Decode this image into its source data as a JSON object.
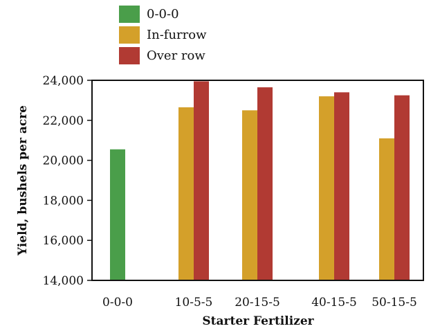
{
  "chart_data": {
    "type": "bar",
    "title": "",
    "xlabel": "Starter Fertilizer",
    "ylabel": "Yield, bushels per acre",
    "ylim": [
      14000,
      24000
    ],
    "yticks": [
      14000,
      16000,
      18000,
      20000,
      22000,
      24000
    ],
    "ytick_labels": [
      "14,000",
      "16,000",
      "18,000",
      "20,000",
      "22,000",
      "24,000"
    ],
    "categories": [
      "0-0-0",
      "10-5-5",
      "20-15-5",
      "40-15-5",
      "50-15-5"
    ],
    "series": [
      {
        "name": "0-0-0",
        "color": "#4a9e4a",
        "values": [
          20550,
          null,
          null,
          null,
          null
        ]
      },
      {
        "name": "In-furrow",
        "color": "#d4a02a",
        "values": [
          null,
          22650,
          22500,
          23200,
          21100
        ]
      },
      {
        "name": "Over row",
        "color": "#b13a33",
        "values": [
          null,
          23950,
          23650,
          23400,
          23250
        ]
      }
    ],
    "legend_position": "top-center",
    "grid": false
  }
}
